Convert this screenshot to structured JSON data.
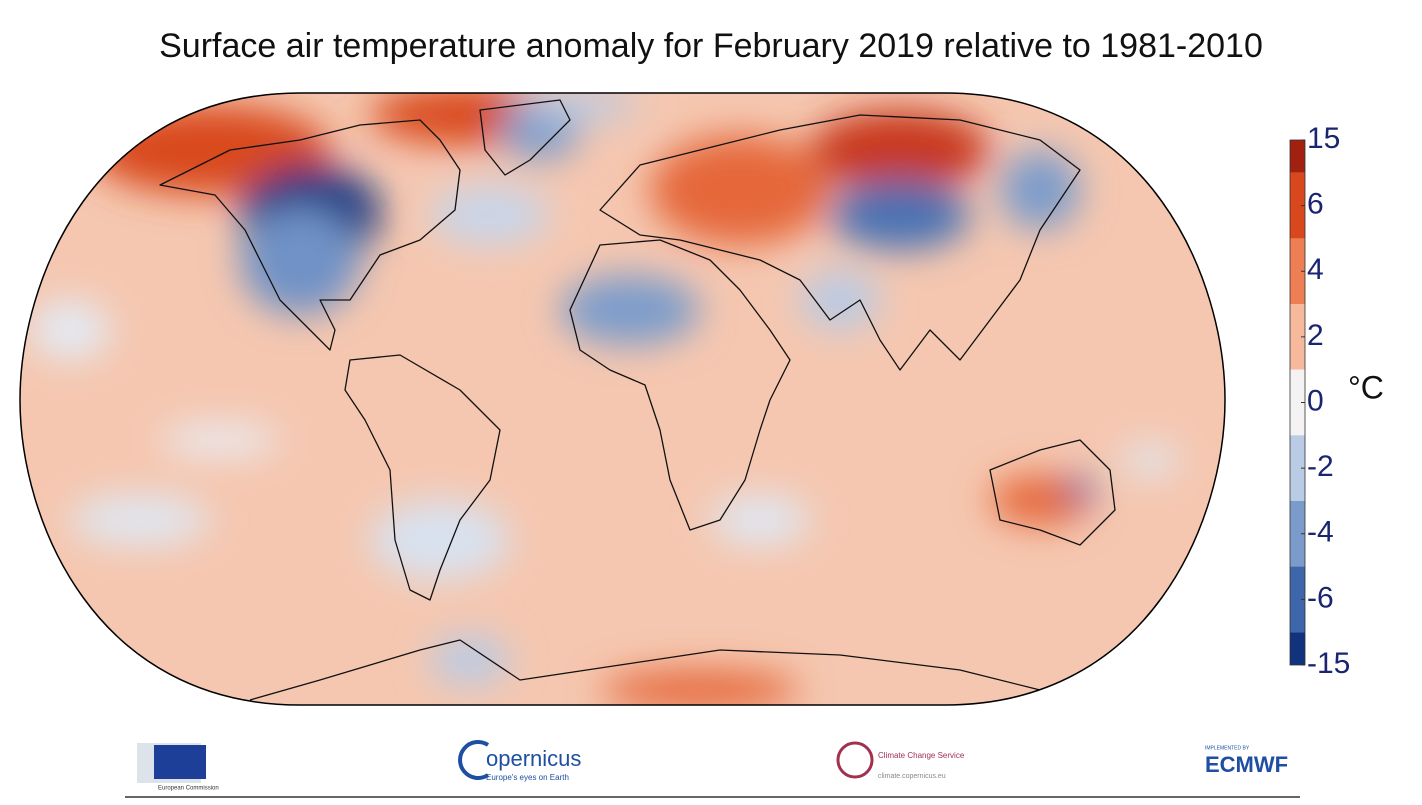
{
  "title": "Surface air temperature anomaly for February 2019 relative to 1981-2010",
  "colorbar": {
    "unit": "°C",
    "ticks": [
      15,
      6,
      4,
      2,
      0,
      -2,
      -4,
      -6,
      -15
    ],
    "colors": [
      "#a1200f",
      "#d9481d",
      "#ee7f55",
      "#f6b99c",
      "#f4f2f2",
      "#b9cbe5",
      "#7b9ccb",
      "#3e66ab",
      "#11337e"
    ]
  },
  "footer": {
    "eu": "European Commission",
    "copernicus": "opernicus",
    "copernicus_tagline": "Europe's eyes on Earth",
    "c3s": "Climate Change Service",
    "c3s_url": "climate.copernicus.eu",
    "ecmwf_pre": "IMPLEMENTED BY",
    "ecmwf": "ECMWF"
  }
}
